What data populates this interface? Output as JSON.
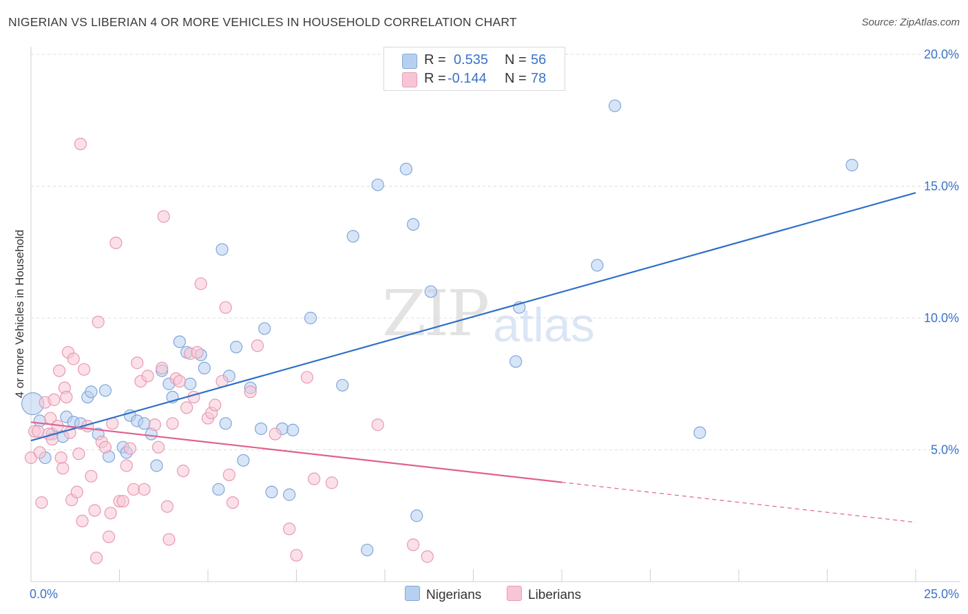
{
  "title": "NIGERIAN VS LIBERIAN 4 OR MORE VEHICLES IN HOUSEHOLD CORRELATION CHART",
  "source": "Source: ZipAtlas.com",
  "watermark": {
    "zip": "ZIP",
    "atlas": "atlas"
  },
  "legend_top": {
    "rows": [
      {
        "r_label": "R =",
        "r_value": "0.535",
        "n_label": "N =",
        "n_value": "56"
      },
      {
        "r_label": "R =",
        "r_value": "-0.144",
        "n_label": "N =",
        "n_value": "78"
      }
    ]
  },
  "legend_bottom": [
    "Nigerians",
    "Liberians"
  ],
  "colors": {
    "nigerians_fill": "#b8d0f0",
    "nigerians_stroke": "#7fa6d9",
    "nigerians_line": "#2e6fc9",
    "liberians_fill": "#f7c6d5",
    "liberians_stroke": "#e899b1",
    "liberians_line": "#e0608e",
    "grid": "#dcdcdc",
    "tick_label": "#3a73c7"
  },
  "chart_data": {
    "type": "scatter",
    "title": "NIGERIAN VS LIBERIAN 4 OR MORE VEHICLES IN HOUSEHOLD CORRELATION CHART",
    "xlabel": "",
    "ylabel": "4 or more Vehicles in Household",
    "xlim": [
      0,
      25
    ],
    "ylim": [
      0,
      20
    ],
    "x_tick_labels": [
      "0.0%",
      "25.0%"
    ],
    "y_ticks": [
      5,
      10,
      15,
      20
    ],
    "y_tick_labels": [
      "5.0%",
      "10.0%",
      "15.0%",
      "20.0%"
    ],
    "grid": true,
    "legend_placement": "top-center",
    "series": [
      {
        "name": "Nigerians",
        "r": 0.535,
        "n": 56,
        "trend": {
          "x": [
            0,
            25
          ],
          "y": [
            5.35,
            14.75
          ],
          "solid_until": 25
        },
        "points": [
          [
            0.05,
            6.75
          ],
          [
            0.25,
            6.1
          ],
          [
            0.4,
            4.7
          ],
          [
            0.6,
            5.6
          ],
          [
            0.9,
            5.5
          ],
          [
            1.0,
            6.25
          ],
          [
            1.2,
            6.05
          ],
          [
            1.4,
            6.0
          ],
          [
            1.6,
            7.0
          ],
          [
            1.7,
            7.2
          ],
          [
            2.1,
            7.25
          ],
          [
            1.9,
            5.6
          ],
          [
            2.2,
            4.75
          ],
          [
            2.6,
            5.1
          ],
          [
            2.7,
            4.9
          ],
          [
            2.8,
            6.3
          ],
          [
            3.0,
            6.1
          ],
          [
            3.2,
            6.0
          ],
          [
            3.4,
            5.6
          ],
          [
            3.55,
            4.4
          ],
          [
            3.7,
            8.0
          ],
          [
            3.9,
            7.5
          ],
          [
            4.0,
            7.0
          ],
          [
            4.2,
            9.1
          ],
          [
            4.4,
            8.7
          ],
          [
            4.5,
            7.5
          ],
          [
            4.8,
            8.6
          ],
          [
            4.9,
            8.1
          ],
          [
            5.3,
            3.5
          ],
          [
            5.4,
            12.6
          ],
          [
            5.5,
            6.0
          ],
          [
            5.6,
            7.8
          ],
          [
            5.8,
            8.9
          ],
          [
            6.0,
            4.6
          ],
          [
            6.2,
            7.35
          ],
          [
            6.5,
            5.8
          ],
          [
            6.6,
            9.6
          ],
          [
            6.8,
            3.4
          ],
          [
            7.1,
            5.8
          ],
          [
            7.3,
            3.3
          ],
          [
            7.4,
            5.75
          ],
          [
            7.9,
            10.0
          ],
          [
            8.8,
            7.45
          ],
          [
            9.1,
            13.1
          ],
          [
            9.5,
            1.2
          ],
          [
            9.8,
            15.05
          ],
          [
            10.6,
            15.65
          ],
          [
            10.8,
            13.55
          ],
          [
            10.9,
            2.5
          ],
          [
            11.3,
            11.0
          ],
          [
            13.7,
            8.35
          ],
          [
            13.8,
            10.4
          ],
          [
            16.0,
            12.0
          ],
          [
            16.5,
            18.05
          ],
          [
            18.9,
            5.65
          ],
          [
            23.2,
            15.8
          ]
        ]
      },
      {
        "name": "Liberians",
        "r": -0.144,
        "n": 78,
        "trend": {
          "x": [
            0,
            25
          ],
          "y": [
            6.05,
            2.25
          ],
          "solid_until": 15
        },
        "points": [
          [
            0.0,
            4.7
          ],
          [
            0.1,
            5.7
          ],
          [
            0.2,
            5.7
          ],
          [
            0.25,
            4.9
          ],
          [
            0.3,
            3.0
          ],
          [
            0.4,
            6.8
          ],
          [
            0.5,
            5.6
          ],
          [
            0.55,
            6.2
          ],
          [
            0.6,
            5.4
          ],
          [
            0.65,
            6.9
          ],
          [
            0.75,
            5.9
          ],
          [
            0.8,
            8.0
          ],
          [
            0.85,
            4.7
          ],
          [
            0.9,
            4.3
          ],
          [
            0.95,
            7.35
          ],
          [
            1.0,
            7.0
          ],
          [
            1.05,
            8.7
          ],
          [
            1.1,
            5.65
          ],
          [
            1.15,
            3.1
          ],
          [
            1.2,
            8.45
          ],
          [
            1.3,
            3.4
          ],
          [
            1.35,
            4.85
          ],
          [
            1.4,
            16.6
          ],
          [
            1.45,
            2.3
          ],
          [
            1.5,
            8.05
          ],
          [
            1.6,
            5.9
          ],
          [
            1.7,
            4.0
          ],
          [
            1.8,
            2.7
          ],
          [
            1.85,
            0.9
          ],
          [
            1.9,
            9.85
          ],
          [
            2.0,
            5.3
          ],
          [
            2.1,
            5.1
          ],
          [
            2.2,
            1.7
          ],
          [
            2.25,
            2.6
          ],
          [
            2.3,
            6.0
          ],
          [
            2.4,
            12.85
          ],
          [
            2.5,
            3.05
          ],
          [
            2.6,
            3.05
          ],
          [
            2.7,
            4.4
          ],
          [
            2.8,
            5.05
          ],
          [
            2.9,
            3.5
          ],
          [
            3.0,
            8.3
          ],
          [
            3.1,
            7.6
          ],
          [
            3.2,
            3.5
          ],
          [
            3.3,
            7.8
          ],
          [
            3.5,
            5.95
          ],
          [
            3.6,
            5.1
          ],
          [
            3.7,
            8.1
          ],
          [
            3.75,
            13.85
          ],
          [
            3.85,
            2.85
          ],
          [
            3.9,
            1.6
          ],
          [
            4.0,
            6.0
          ],
          [
            4.1,
            7.7
          ],
          [
            4.2,
            7.6
          ],
          [
            4.3,
            4.2
          ],
          [
            4.4,
            6.6
          ],
          [
            4.5,
            8.65
          ],
          [
            4.6,
            7.0
          ],
          [
            4.7,
            8.7
          ],
          [
            4.8,
            11.3
          ],
          [
            5.0,
            6.2
          ],
          [
            5.1,
            6.4
          ],
          [
            5.2,
            6.7
          ],
          [
            5.4,
            7.6
          ],
          [
            5.5,
            10.4
          ],
          [
            5.6,
            4.05
          ],
          [
            5.7,
            3.0
          ],
          [
            6.2,
            7.2
          ],
          [
            6.4,
            8.95
          ],
          [
            6.9,
            5.6
          ],
          [
            7.3,
            2.0
          ],
          [
            7.5,
            1.0
          ],
          [
            7.8,
            7.75
          ],
          [
            8.0,
            3.9
          ],
          [
            8.5,
            3.75
          ],
          [
            9.8,
            5.95
          ],
          [
            10.8,
            1.4
          ],
          [
            11.2,
            0.95
          ]
        ]
      }
    ]
  }
}
